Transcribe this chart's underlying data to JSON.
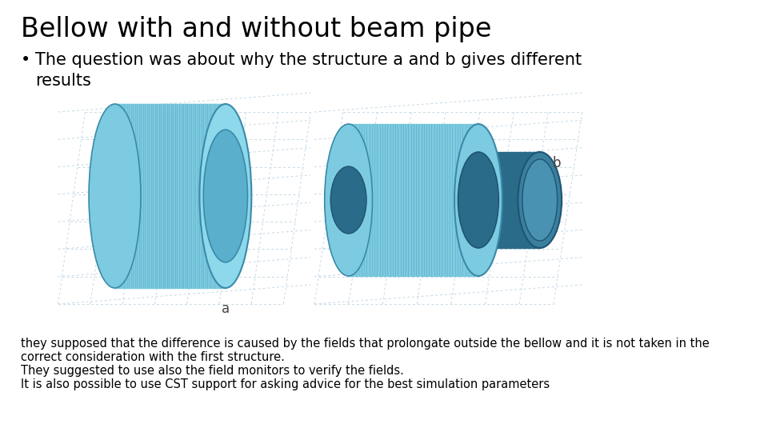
{
  "title": "Bellow with and without beam pipe",
  "bullet_marker": "•",
  "bullet_text": "The question was about why the structure a and b gives different\nresults",
  "label_a": "a",
  "label_b": "b",
  "body_text_line1": "they supposed that the difference is caused by the fields that prolongate outside the bellow and it is not taken in the",
  "body_text_line2": "correct consideration with the first structure.",
  "body_text_line3": "They suggested to use also the field monitors to verify the fields.",
  "body_text_line4": "It is also possible to use CST support for asking advice for the best simulation parameters",
  "background_color": "#ffffff",
  "title_fontsize": 24,
  "bullet_fontsize": 15,
  "label_fontsize": 12,
  "body_fontsize": 10.5,
  "title_color": "#000000",
  "body_color": "#000000",
  "light_blue": "#7dcbe0",
  "mid_blue": "#5aafcc",
  "dark_blue": "#2a6b8a",
  "dark_blue2": "#1e5570",
  "rim_color": "#3a8aaa",
  "grid_color": "#c5d8e5",
  "corrugation_color": "#4a9ab5"
}
